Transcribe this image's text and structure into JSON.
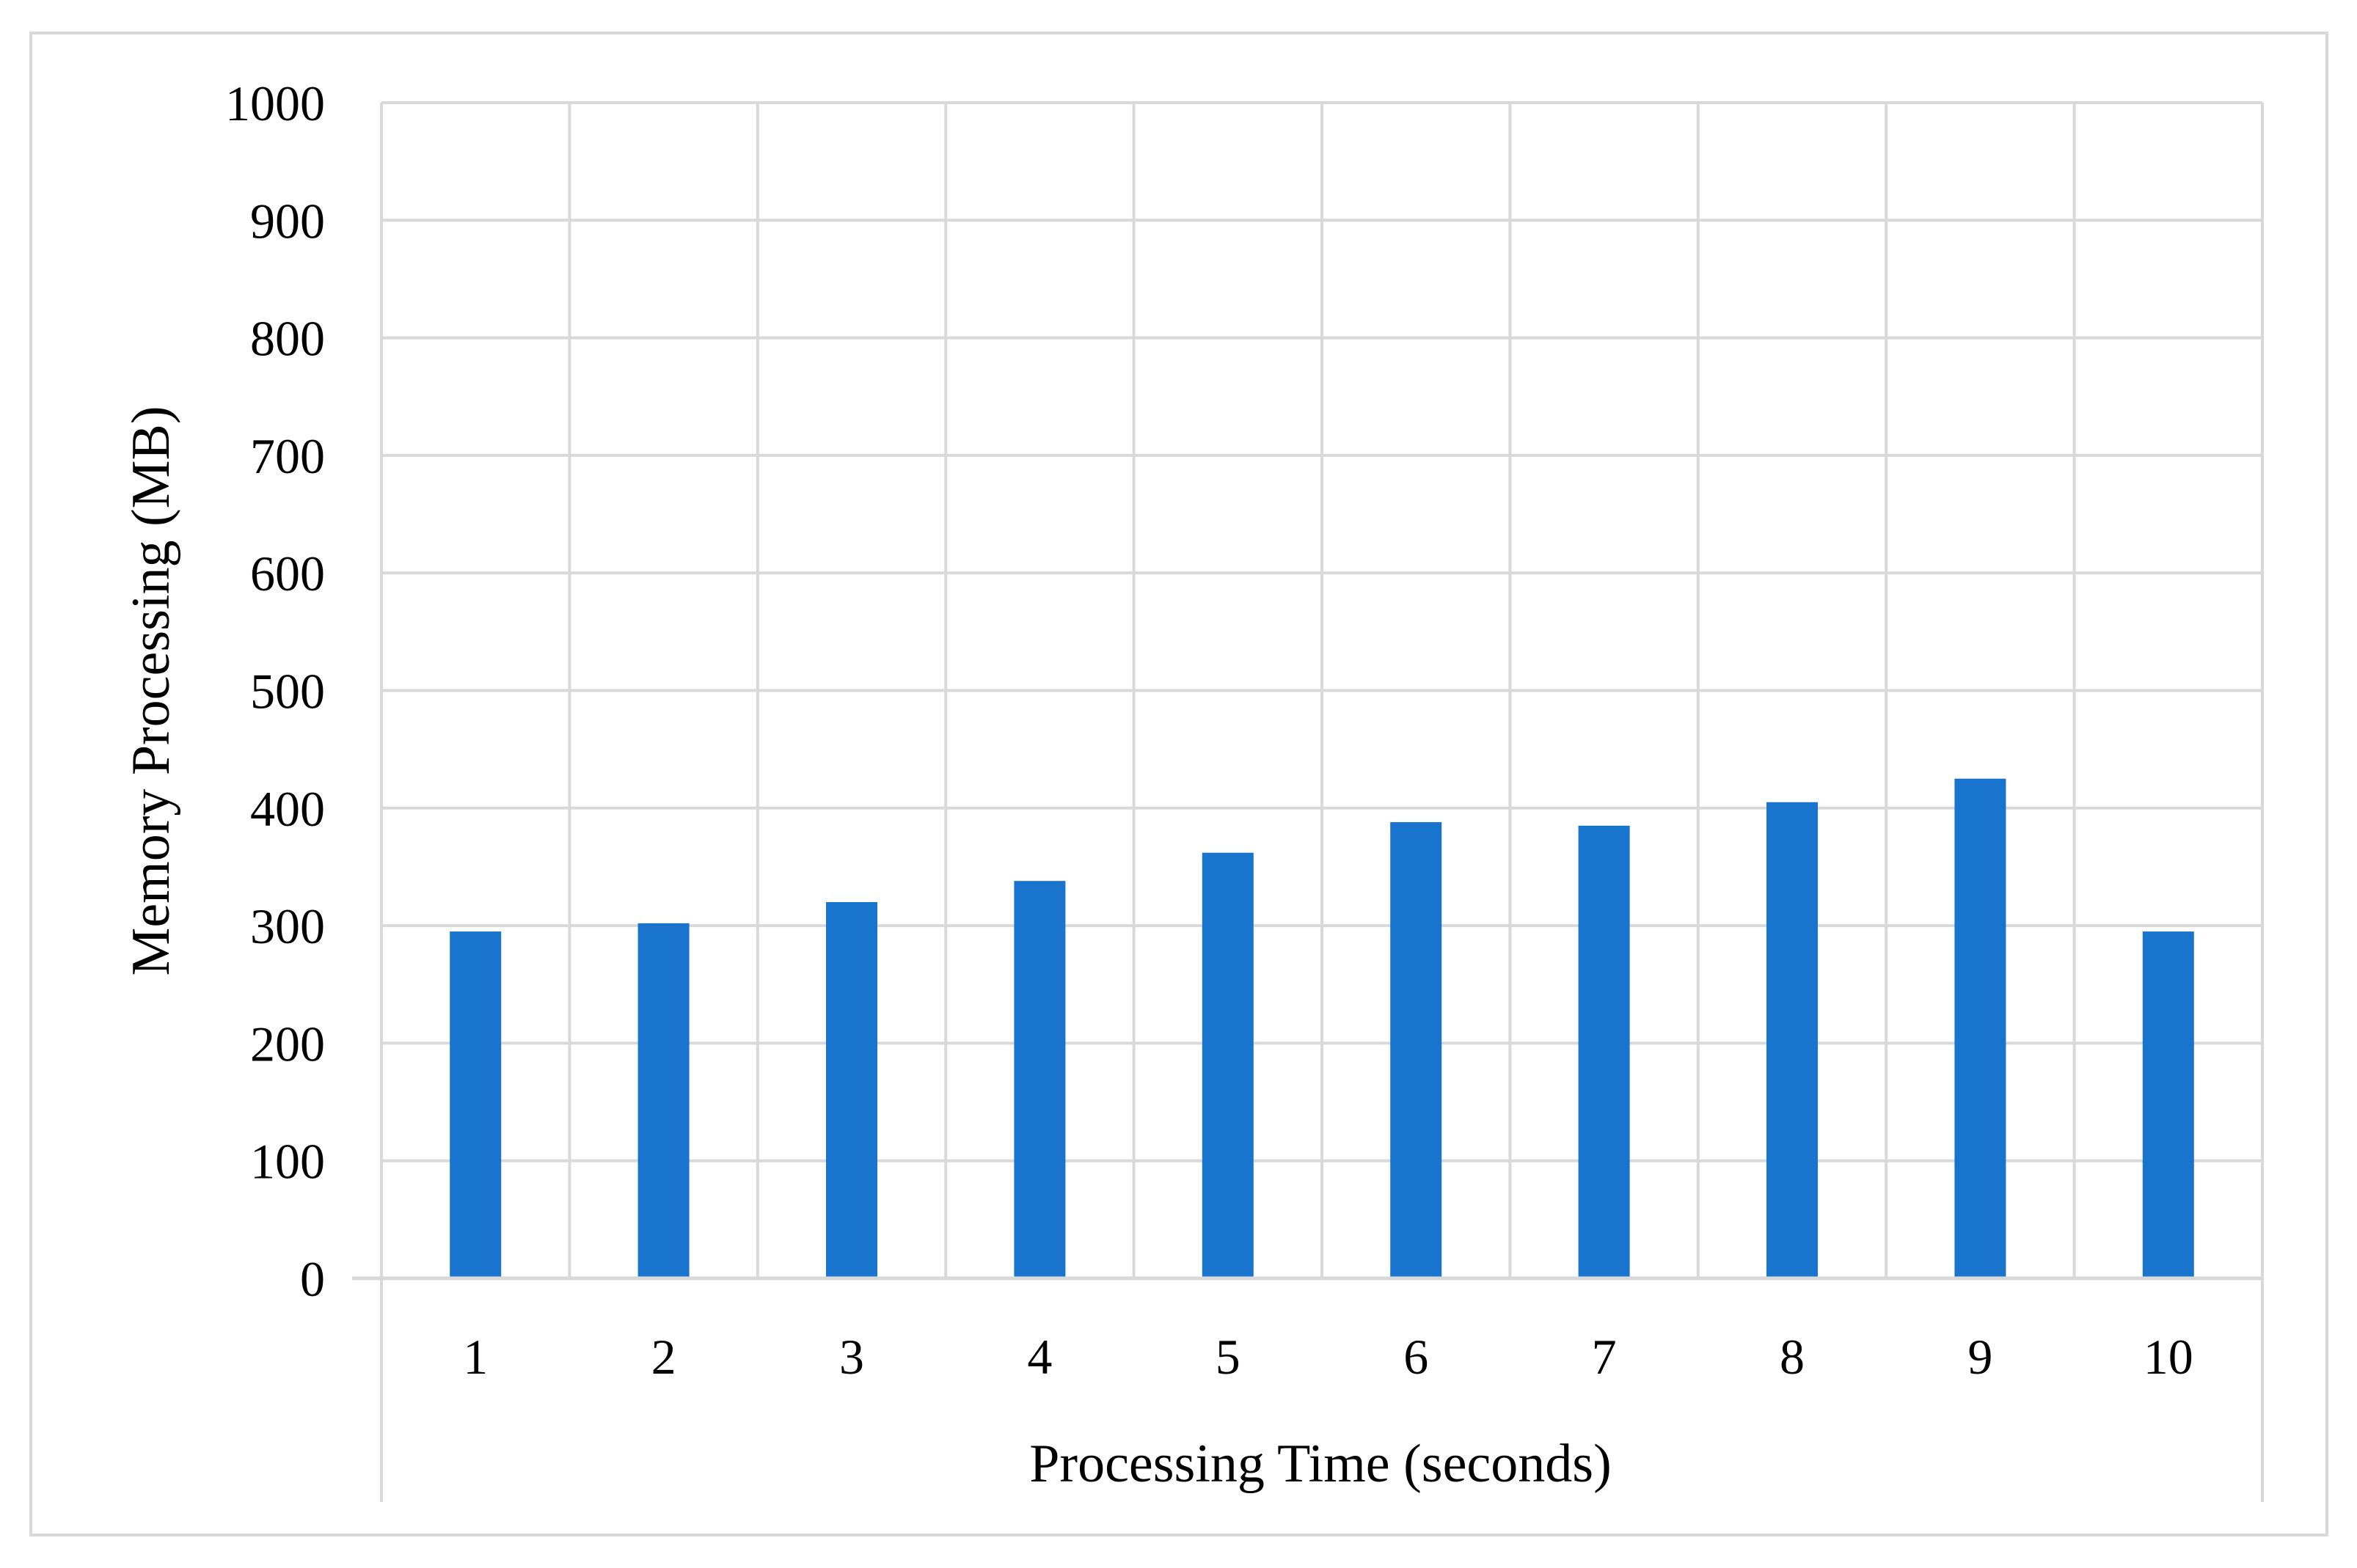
{
  "chart_data": {
    "type": "bar",
    "title": "",
    "xlabel": "Processing Time (seconds)",
    "ylabel": "Memory Processing (MB)",
    "categories": [
      "1",
      "2",
      "3",
      "4",
      "5",
      "6",
      "7",
      "8",
      "9",
      "10"
    ],
    "series": [
      {
        "values": [
          295,
          302,
          320,
          338,
          362,
          388,
          385,
          405,
          425,
          295
        ]
      }
    ],
    "ylim": [
      0,
      1000
    ],
    "yticks": [
      0,
      100,
      200,
      300,
      400,
      500,
      600,
      700,
      800,
      900,
      1000
    ],
    "grid": true,
    "legend": "none",
    "colors": {
      "bar": "#1874CD",
      "grid": "#D9D9D9",
      "frame": "#D9D9D9",
      "axis": "#D9D9D9",
      "text": "#000000"
    }
  }
}
